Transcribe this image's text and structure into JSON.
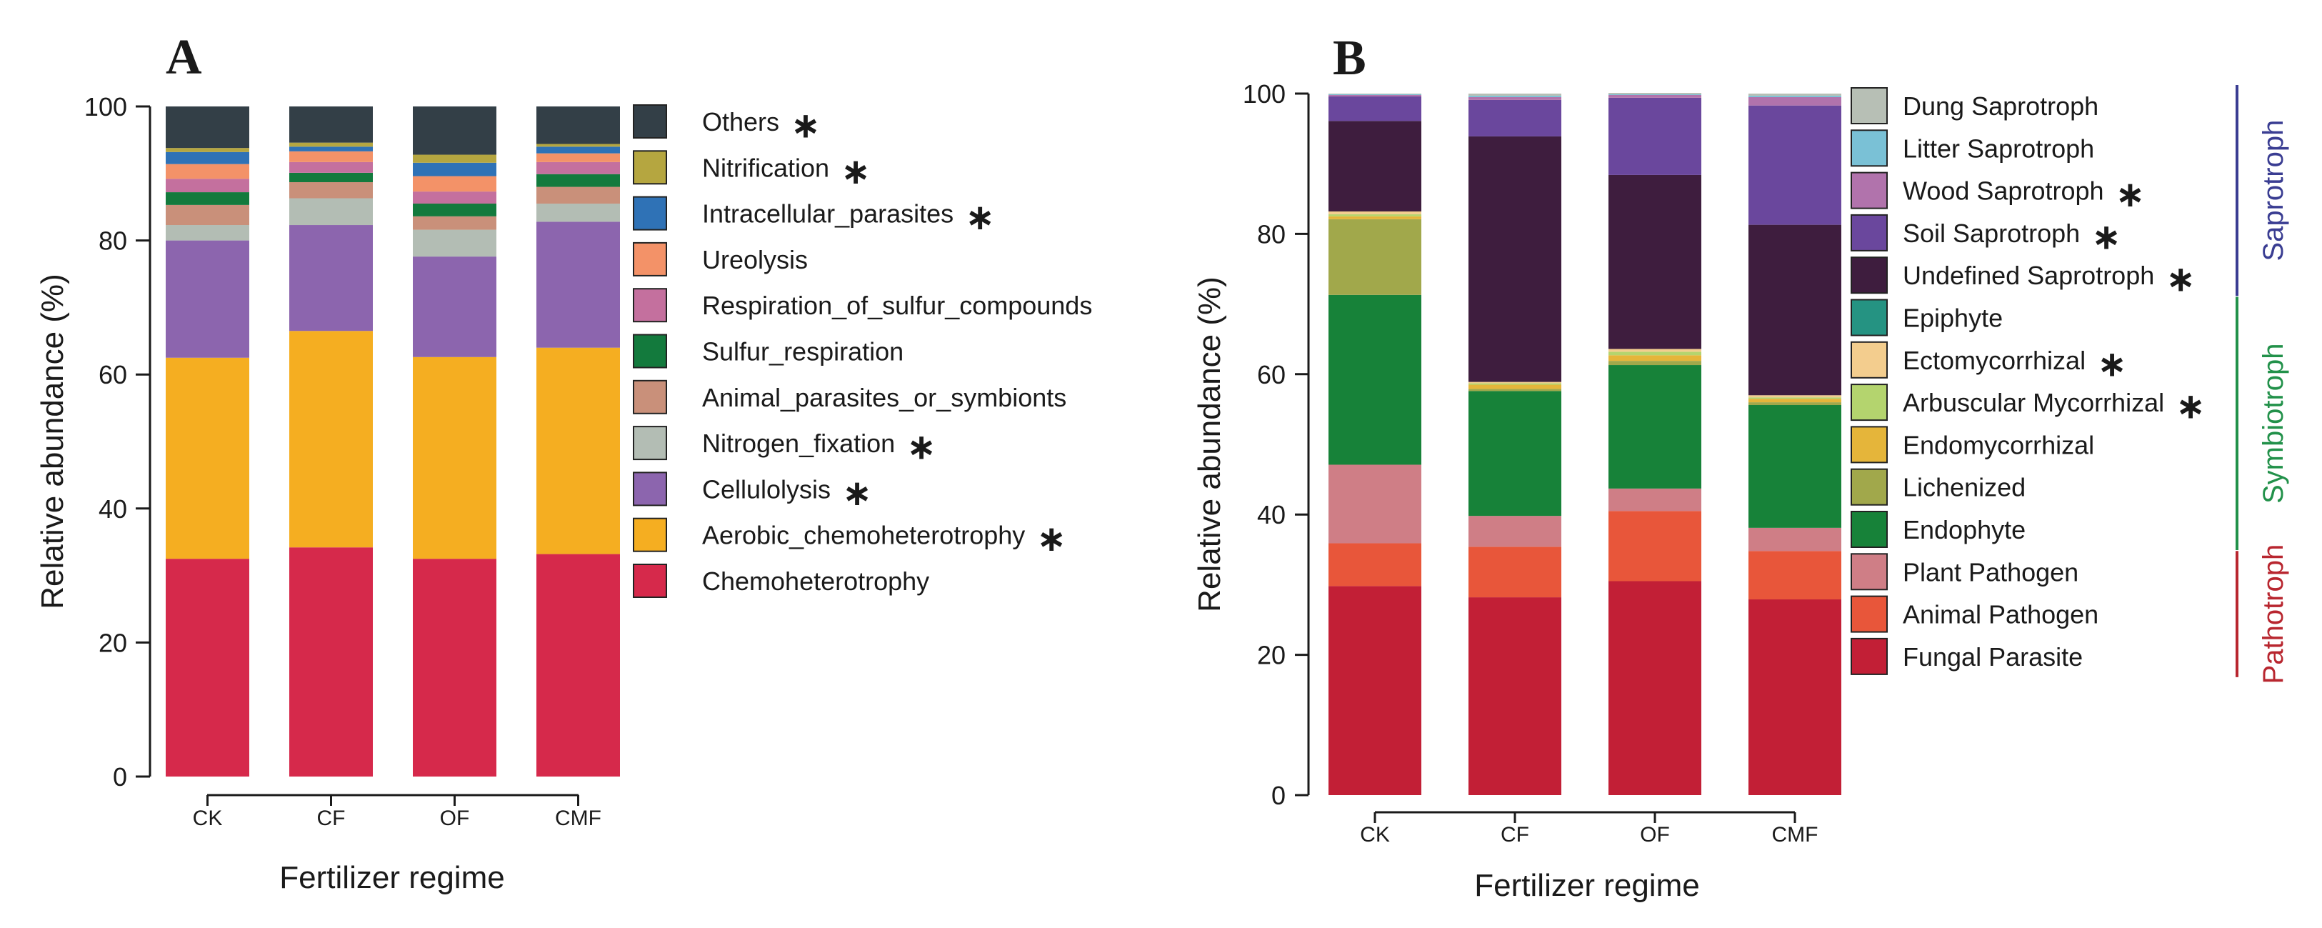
{
  "chart_data": [
    {
      "panel": "A",
      "type": "bar",
      "stacked": true,
      "ylabel": "Relative abundance (%)",
      "xlabel": "Fertilizer regime",
      "ylim": [
        0,
        100
      ],
      "yticks": [
        "0",
        "20",
        "40",
        "60",
        "80",
        "100"
      ],
      "categories": [
        "CK",
        "CF",
        "OF",
        "CMF"
      ],
      "series": [
        {
          "name": "Chemoheterotrophy",
          "color": "#d6294b",
          "star": false,
          "values": [
            32.5,
            34.2,
            32.5,
            33.2
          ]
        },
        {
          "name": "Aerobic_chemoheterotrophy",
          "color": "#f5ae21",
          "star": true,
          "values": [
            30.0,
            32.3,
            30.1,
            30.8
          ]
        },
        {
          "name": "Cellulolysis",
          "color": "#8c65ae",
          "star": true,
          "values": [
            17.5,
            15.8,
            15.0,
            18.8
          ]
        },
        {
          "name": "Nitrogen_fixation",
          "color": "#b3bdb4",
          "star": true,
          "values": [
            2.3,
            4.0,
            4.0,
            2.7
          ]
        },
        {
          "name": "Animal_parasites_or_symbionts",
          "color": "#c9907a",
          "star": false,
          "values": [
            3.0,
            2.4,
            2.0,
            2.5
          ]
        },
        {
          "name": "Sulfur_respiration",
          "color": "#137a3d",
          "star": false,
          "values": [
            1.9,
            1.4,
            1.9,
            1.9
          ]
        },
        {
          "name": "Respiration_of_sulfur_compounds",
          "color": "#c4709e",
          "star": false,
          "values": [
            2.0,
            1.6,
            1.8,
            1.8
          ]
        },
        {
          "name": "Ureolysis",
          "color": "#f39268",
          "star": false,
          "values": [
            2.2,
            1.6,
            2.3,
            1.3
          ]
        },
        {
          "name": "Intracellular_parasites",
          "color": "#2f72b6",
          "star": true,
          "values": [
            1.8,
            0.7,
            2.0,
            1.0
          ]
        },
        {
          "name": "Nitrification",
          "color": "#b5a640",
          "star": true,
          "values": [
            0.6,
            0.6,
            1.2,
            0.4
          ]
        },
        {
          "name": "Others",
          "color": "#333f47",
          "star": true,
          "values": [
            6.2,
            5.4,
            7.2,
            5.6
          ]
        }
      ],
      "legend_order": [
        "Others",
        "Nitrification",
        "Intracellular_parasites",
        "Ureolysis",
        "Respiration_of_sulfur_compounds",
        "Sulfur_respiration",
        "Animal_parasites_or_symbionts",
        "Nitrogen_fixation",
        "Cellulolysis",
        "Aerobic_chemoheterotrophy",
        "Chemoheterotrophy"
      ],
      "legend_position": "right"
    },
    {
      "panel": "B",
      "type": "bar",
      "stacked": true,
      "ylabel": "Relative abundance (%)",
      "xlabel": "Fertilizer regime",
      "ylim": [
        0,
        100
      ],
      "yticks": [
        "0",
        "20",
        "40",
        "60",
        "80",
        "100"
      ],
      "categories": [
        "CK",
        "CF",
        "OF",
        "CMF"
      ],
      "series": [
        {
          "name": "Fungal Parasite",
          "color": "#c21f36",
          "star": false,
          "values": [
            29.8,
            28.2,
            30.5,
            27.9
          ]
        },
        {
          "name": "Animal Pathogen",
          "color": "#e8563a",
          "star": false,
          "values": [
            6.1,
            7.2,
            10.0,
            6.9
          ]
        },
        {
          "name": "Plant Pathogen",
          "color": "#cf7e86",
          "star": false,
          "values": [
            11.2,
            4.4,
            3.2,
            3.3
          ]
        },
        {
          "name": "Endophyte",
          "color": "#178239",
          "star": false,
          "values": [
            24.2,
            17.8,
            17.6,
            17.5
          ]
        },
        {
          "name": "Lichenized",
          "color": "#a1a84b",
          "star": false,
          "values": [
            10.8,
            0.3,
            0.6,
            0.4
          ]
        },
        {
          "name": "Endomycorrhizal",
          "color": "#e5b53a",
          "star": false,
          "values": [
            0.4,
            0.6,
            0.8,
            0.5
          ]
        },
        {
          "name": "Arbuscular Mycorrhizal",
          "color": "#b4d46e",
          "star": true,
          "values": [
            0.3,
            0.2,
            0.5,
            0.2
          ]
        },
        {
          "name": "Ectomycorrhizal",
          "color": "#f3cd8e",
          "star": true,
          "values": [
            0.4,
            0.2,
            0.4,
            0.3
          ]
        },
        {
          "name": "Epiphyte",
          "color": "#259382",
          "star": false,
          "values": [
            0.0,
            0.0,
            0.0,
            0.0
          ]
        },
        {
          "name": "Undefined Saprotroph",
          "color": "#3e1d3e",
          "star": true,
          "values": [
            12.9,
            35.0,
            24.8,
            24.3
          ]
        },
        {
          "name": "Soil Saprotroph",
          "color": "#6a479d",
          "star": true,
          "values": [
            3.5,
            5.2,
            11.0,
            17.0
          ]
        },
        {
          "name": "Wood Saprotroph",
          "color": "#b173ac",
          "star": true,
          "values": [
            0.2,
            0.4,
            0.4,
            1.2
          ]
        },
        {
          "name": "Litter Saprotroph",
          "color": "#7ac1d6",
          "star": false,
          "values": [
            0.1,
            0.2,
            0.1,
            0.2
          ]
        },
        {
          "name": "Dung Saprotroph",
          "color": "#b7bfb5",
          "star": false,
          "values": [
            0.1,
            0.3,
            0.2,
            0.3
          ]
        }
      ],
      "legend_order": [
        "Dung Saprotroph",
        "Litter Saprotroph",
        "Wood Saprotroph",
        "Soil Saprotroph",
        "Undefined Saprotroph",
        "Epiphyte",
        "Ectomycorrhizal",
        "Arbuscular Mycorrhizal",
        "Endomycorrhizal",
        "Lichenized",
        "Endophyte",
        "Plant Pathogen",
        "Animal Pathogen",
        "Fungal Parasite"
      ],
      "legend_position": "right",
      "groups": [
        {
          "name": "Saprotroph",
          "color": "#3a3d92",
          "members": [
            "Dung Saprotroph",
            "Litter Saprotroph",
            "Wood Saprotroph",
            "Soil Saprotroph",
            "Undefined Saprotroph"
          ]
        },
        {
          "name": "Symbiotroph",
          "color": "#22914a",
          "members": [
            "Epiphyte",
            "Ectomycorrhizal",
            "Arbuscular Mycorrhizal",
            "Endomycorrhizal",
            "Lichenized",
            "Endophyte"
          ]
        },
        {
          "name": "Pathotroph",
          "color": "#b8262f",
          "members": [
            "Plant Pathogen",
            "Animal Pathogen",
            "Fungal Parasite"
          ]
        }
      ]
    }
  ],
  "star_symbol": "∗"
}
